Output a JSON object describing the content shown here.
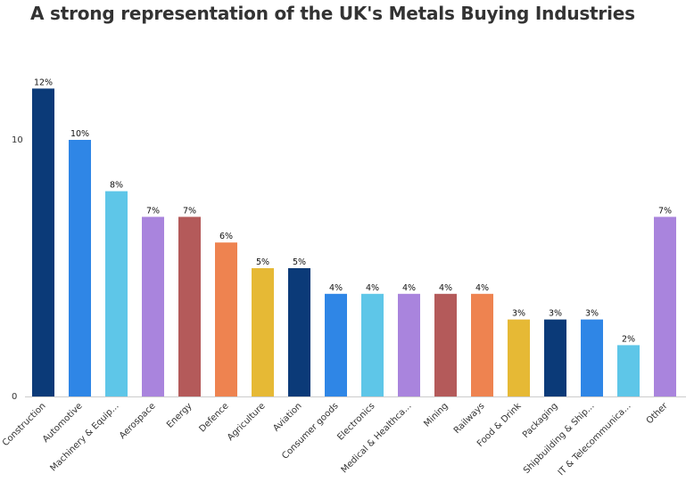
{
  "title": "A strong representation of the UK's Metals Buying Industries",
  "chart_data": {
    "type": "bar",
    "title": "A strong representation of the UK's Metals Buying Industries",
    "xlabel": "",
    "ylabel": "",
    "ylim": [
      0,
      12
    ],
    "yticks": [
      0,
      10
    ],
    "grid": false,
    "categories": [
      "Construction",
      "Automotive",
      "Machinery & Equip...",
      "Aerospace",
      "Energy",
      "Defence",
      "Agriculture",
      "Aviation",
      "Consumer goods",
      "Electronics",
      "Medical & Healthca...",
      "Mining",
      "Railways",
      "Food & Drink",
      "Packaging",
      "Shipbuilding & Ship...",
      "IT & Telecommunica...",
      "Other"
    ],
    "values": [
      12,
      10,
      8,
      7,
      7,
      6,
      5,
      5,
      4,
      4,
      4,
      4,
      4,
      3,
      3,
      3,
      2,
      7
    ],
    "data_labels": [
      "12%",
      "10%",
      "8%",
      "7%",
      "7%",
      "6%",
      "5%",
      "5%",
      "4%",
      "4%",
      "4%",
      "4%",
      "4%",
      "3%",
      "3%",
      "3%",
      "2%",
      "7%"
    ],
    "colors": [
      "#0b3a78",
      "#2f86e6",
      "#5ec6e8",
      "#a984dd",
      "#b45a5a",
      "#ee8350",
      "#e6b935",
      "#0b3a78",
      "#2f86e6",
      "#5ec6e8",
      "#a984dd",
      "#b45a5a",
      "#ee8350",
      "#e6b935",
      "#0b3a78",
      "#2f86e6",
      "#5ec6e8",
      "#a984dd"
    ]
  }
}
